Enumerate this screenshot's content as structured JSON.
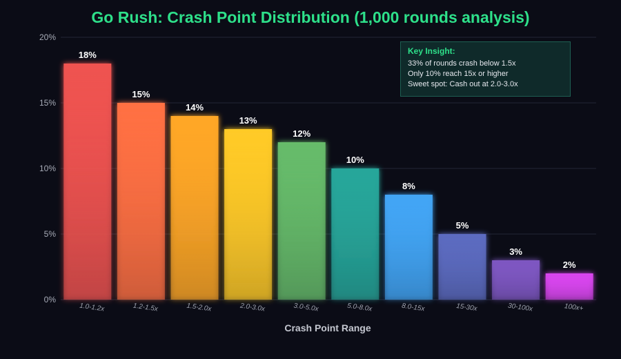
{
  "chart_data": {
    "type": "bar",
    "title": "Go Rush: Crash Point Distribution (1,000 rounds analysis)",
    "xlabel": "Crash Point Range",
    "ylabel": "",
    "categories": [
      "1.0-1.2x",
      "1.2-1.5x",
      "1.5-2.0x",
      "2.0-3.0x",
      "3.0-5.0x",
      "5.0-8.0x",
      "8.0-15x",
      "15-30x",
      "30-100x",
      "100x+"
    ],
    "values": [
      18,
      15,
      14,
      13,
      12,
      10,
      8,
      5,
      3,
      2
    ],
    "data_labels": [
      "18%",
      "15%",
      "14%",
      "13%",
      "12%",
      "10%",
      "8%",
      "5%",
      "3%",
      "2%"
    ],
    "colors": [
      "#ef5350",
      "#ff7043",
      "#ffa726",
      "#ffca28",
      "#66bb6a",
      "#26a69a",
      "#42a5f5",
      "#5c6bc0",
      "#7e57c2",
      "#d946ef"
    ],
    "ylim": [
      0,
      20
    ],
    "yticks": [
      0,
      5,
      10,
      15,
      20
    ],
    "ytick_labels": [
      "0%",
      "5%",
      "10%",
      "15%",
      "20%"
    ],
    "grid": true,
    "legend": "none"
  },
  "insight": {
    "title": "Key Insight:",
    "lines": [
      "33% of rounds crash below 1.5x",
      "Only 10% reach 15x or higher",
      "Sweet spot: Cash out at 2.0-3.0x"
    ]
  }
}
